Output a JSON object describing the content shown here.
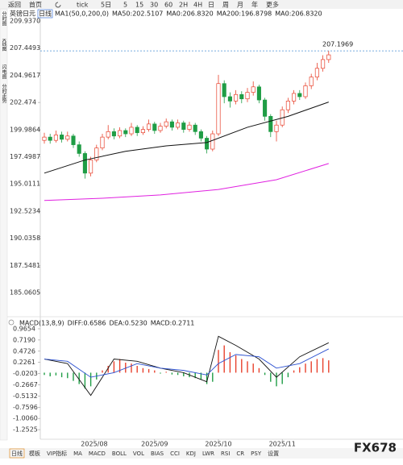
{
  "toolbar": [
    "返回",
    "首页",
    "tick",
    "5日",
    "5",
    "15",
    "30",
    "60",
    "2H",
    "4H",
    "日",
    "周",
    "月",
    "年",
    "更多"
  ],
  "sidebar": [
    "分时图",
    "K线图",
    "闪电图",
    "分时走势"
  ],
  "chart_data": [
    {
      "type": "candlestick",
      "title": "英镑日元",
      "period": "日线",
      "indicator": "MA1(50,0,200,0)",
      "legend_texts": [
        "MA50:202.5107",
        "MA0:206.8320",
        "MA200:196.8798",
        "MA0:206.8320"
      ],
      "legend_colors": [
        "#222222",
        "#1f5fd6",
        "#d62fd6",
        "#f08c1e"
      ],
      "up_color": "#e8412c",
      "down_color": "#1f9d45",
      "ylim": [
        183.07,
        210.38
      ],
      "yticks": [
        {
          "value": 209.937,
          "label": "209.9370"
        },
        207.4493,
        204.9617,
        202.474,
        199.9864,
        197.4987,
        195.0111,
        192.5234,
        190.0358,
        187.5481,
        185.0605
      ],
      "last_price": 207.1969,
      "last_price_color": "#e8412c",
      "xticks": [
        {
          "value": 8.6,
          "label": "2025/08"
        },
        {
          "value": 19,
          "label": "2025/09"
        },
        {
          "value": 30,
          "label": "2025/10"
        },
        {
          "value": 41,
          "label": "2025/11"
        }
      ],
      "candles": [
        [
          199.0,
          199.7,
          198.7,
          199.3
        ],
        [
          199.3,
          199.6,
          198.7,
          199.0
        ],
        [
          199.0,
          199.9,
          198.8,
          199.5
        ],
        [
          199.5,
          199.8,
          198.8,
          199.1
        ],
        [
          199.1,
          199.8,
          198.9,
          199.4
        ],
        [
          199.4,
          199.6,
          198.3,
          198.6
        ],
        [
          198.6,
          198.9,
          197.5,
          197.8
        ],
        [
          197.8,
          198.0,
          195.5,
          196.0
        ],
        [
          196.0,
          197.5,
          195.7,
          197.2
        ],
        [
          197.2,
          198.6,
          197.0,
          198.3
        ],
        [
          198.3,
          199.6,
          198.1,
          199.3
        ],
        [
          199.3,
          200.4,
          199.1,
          199.8
        ],
        [
          199.8,
          200.1,
          199.1,
          199.4
        ],
        [
          199.4,
          200.2,
          199.2,
          199.9
        ],
        [
          199.9,
          200.1,
          199.3,
          199.6
        ],
        [
          199.6,
          200.6,
          199.4,
          200.2
        ],
        [
          200.2,
          200.4,
          199.4,
          199.7
        ],
        [
          199.7,
          200.3,
          199.5,
          200.0
        ],
        [
          200.0,
          200.9,
          199.8,
          200.5
        ],
        [
          200.5,
          200.7,
          199.6,
          199.9
        ],
        [
          199.9,
          200.6,
          199.7,
          200.3
        ],
        [
          200.3,
          201.0,
          200.1,
          200.7
        ],
        [
          200.7,
          200.9,
          199.9,
          200.2
        ],
        [
          200.2,
          200.9,
          200.0,
          200.6
        ],
        [
          200.6,
          200.8,
          199.7,
          200.0
        ],
        [
          200.0,
          200.7,
          199.8,
          200.4
        ],
        [
          200.4,
          200.6,
          199.5,
          199.8
        ],
        [
          199.8,
          200.0,
          198.9,
          199.2
        ],
        [
          199.2,
          199.4,
          197.8,
          198.2
        ],
        [
          198.2,
          199.9,
          198.0,
          199.6
        ],
        [
          199.6,
          205.0,
          199.4,
          204.2
        ],
        [
          204.2,
          204.5,
          202.4,
          203.0
        ],
        [
          203.0,
          203.4,
          202.0,
          202.6
        ],
        [
          202.6,
          203.6,
          202.3,
          203.2
        ],
        [
          203.2,
          203.5,
          202.4,
          202.8
        ],
        [
          202.8,
          203.8,
          202.5,
          203.4
        ],
        [
          203.4,
          204.4,
          203.1,
          203.9
        ],
        [
          203.9,
          204.1,
          202.4,
          202.7
        ],
        [
          202.7,
          202.9,
          200.8,
          201.2
        ],
        [
          201.2,
          201.4,
          199.3,
          199.8
        ],
        [
          199.8,
          200.8,
          198.9,
          200.4
        ],
        [
          200.4,
          202.1,
          200.2,
          201.8
        ],
        [
          201.8,
          202.9,
          201.5,
          202.6
        ],
        [
          202.6,
          203.6,
          202.3,
          203.3
        ],
        [
          203.3,
          203.6,
          202.7,
          203.0
        ],
        [
          203.0,
          204.3,
          202.8,
          204.0
        ],
        [
          204.0,
          205.1,
          203.7,
          204.8
        ],
        [
          204.8,
          206.1,
          204.5,
          205.6
        ],
        [
          205.6,
          206.8,
          205.3,
          206.4
        ],
        [
          206.4,
          207.1969,
          206.1,
          206.832
        ]
      ],
      "series": [
        {
          "name": "MA50",
          "color": "#111111",
          "x": [
            0,
            7,
            14,
            21,
            28,
            35,
            42,
            49
          ],
          "values": [
            196.0,
            197.2,
            198.0,
            198.5,
            198.8,
            200.2,
            201.2,
            202.5107
          ]
        },
        {
          "name": "MA200",
          "color": "#e020e0",
          "x": [
            0,
            10,
            20,
            30,
            40,
            49
          ],
          "values": [
            193.5,
            193.7,
            194.0,
            194.5,
            195.4,
            196.8798
          ]
        }
      ]
    },
    {
      "type": "macd",
      "title": "MACD(13,8,9)",
      "legend_texts": [
        "DIFF:0.6586",
        "DEA:0.5230",
        "MACD:0.2711"
      ],
      "legend_colors": [
        "#222222",
        "#1f5fd6",
        "#d62fd6"
      ],
      "up_color": "#e8412c",
      "down_color": "#1f9d45",
      "ylim": [
        -1.375,
        1.107
      ],
      "yticks": [
        0.9654,
        {
          "value": 0.719,
          "label": "0.7190"
        },
        0.4726,
        0.2261,
        -0.0203,
        -0.2667,
        -0.5132,
        -0.7596,
        {
          "value": -1.006,
          "label": "-1.0060"
        },
        -1.2525
      ],
      "histogram": [
        -0.05,
        -0.08,
        -0.06,
        -0.1,
        -0.12,
        -0.18,
        -0.25,
        -0.35,
        -0.3,
        -0.15,
        0.05,
        0.15,
        0.25,
        0.3,
        0.22,
        0.2,
        0.15,
        0.1,
        0.08,
        0.05,
        -0.02,
        0.02,
        -0.04,
        -0.05,
        -0.08,
        -0.1,
        -0.12,
        -0.15,
        -0.25,
        -0.2,
        0.5,
        0.6,
        0.45,
        0.38,
        0.3,
        0.25,
        0.2,
        0.1,
        -0.05,
        -0.2,
        -0.3,
        -0.25,
        -0.1,
        0.05,
        0.12,
        0.2,
        0.25,
        0.3,
        0.32,
        0.2711
      ],
      "series": [
        {
          "name": "DIFF",
          "color": "#111111",
          "x": [
            0,
            4,
            8,
            12,
            16,
            20,
            24,
            28,
            30,
            33,
            37,
            40,
            44,
            49
          ],
          "values": [
            0.3,
            0.2,
            -0.5,
            0.3,
            0.25,
            0.1,
            0.0,
            -0.2,
            0.8,
            0.6,
            0.3,
            -0.1,
            0.35,
            0.6586
          ]
        },
        {
          "name": "DEA",
          "color": "#2a4fd0",
          "x": [
            0,
            4,
            8,
            12,
            16,
            20,
            24,
            28,
            30,
            33,
            37,
            40,
            44,
            49
          ],
          "values": [
            0.3,
            0.25,
            -0.1,
            0.0,
            0.2,
            0.1,
            0.05,
            -0.05,
            0.2,
            0.4,
            0.35,
            0.1,
            0.2,
            0.523
          ]
        }
      ]
    }
  ],
  "tabs": [
    "日线",
    "模板",
    "VIP指标",
    "MA",
    "MACD",
    "BOLL",
    "VOL",
    "BIAS",
    "CCI",
    "KDJ",
    "LWR",
    "RSI",
    "CR",
    "PSY",
    "设置"
  ],
  "watermark": "FX678"
}
